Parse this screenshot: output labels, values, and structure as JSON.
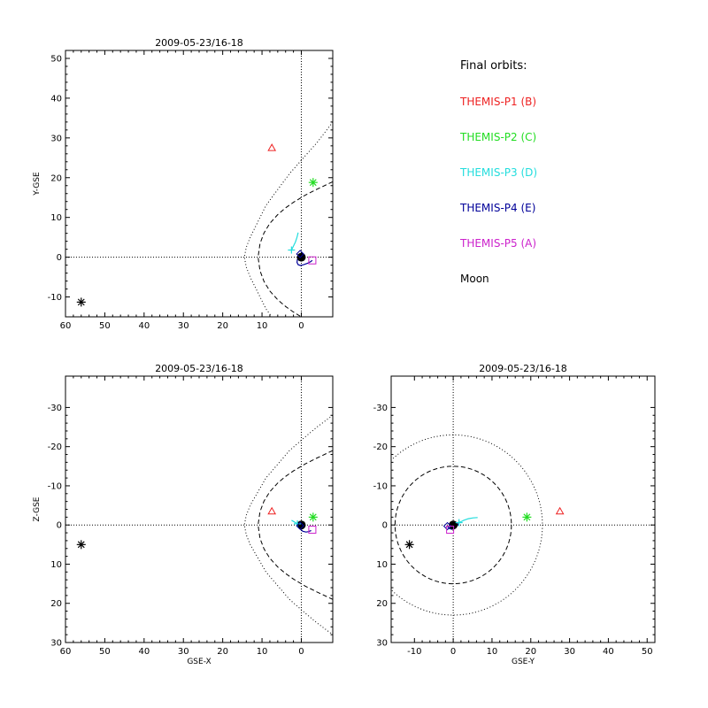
{
  "colors": {
    "p1": "#ee2222",
    "p2": "#22dd22",
    "p3": "#22dddd",
    "p4": "#000099",
    "p5": "#cc22cc",
    "moon": "#000000",
    "axes": "#000000"
  },
  "legend": {
    "title": "Final orbits:",
    "items": [
      {
        "label": "THEMIS-P1 (B)",
        "color": "#ee2222",
        "symbol": "triangle"
      },
      {
        "label": "THEMIS-P2 (C)",
        "color": "#22dd22",
        "symbol": "asterisk"
      },
      {
        "label": "THEMIS-P3 (D)",
        "color": "#22dddd",
        "symbol": "plus"
      },
      {
        "label": "THEMIS-P4 (E)",
        "color": "#000099",
        "symbol": "diamond"
      },
      {
        "label": "THEMIS-P5 (A)",
        "color": "#cc22cc",
        "symbol": "square"
      },
      {
        "label": "Moon",
        "color": "#000000",
        "symbol": "asterisk"
      }
    ]
  },
  "chart_data": [
    {
      "type": "scatter",
      "panel": "top-left",
      "title": "2009-05-23/16-18",
      "xlabel": "",
      "ylabel": "Y-GSE",
      "xlim": [
        60,
        -8
      ],
      "ylim": [
        52,
        -15
      ],
      "xticks": [
        60,
        50,
        40,
        30,
        20,
        10,
        0
      ],
      "yticks": [
        -10,
        0,
        10,
        20,
        30,
        40,
        50
      ],
      "points": [
        {
          "name": "THEMIS-P1 (B)",
          "x": 7.5,
          "y": 27.5,
          "symbol": "triangle"
        },
        {
          "name": "THEMIS-P2 (C)",
          "x": -3.0,
          "y": 18.8,
          "symbol": "asterisk"
        },
        {
          "name": "THEMIS-P3 (D)",
          "x": 2.5,
          "y": 1.8,
          "symbol": "plus"
        },
        {
          "name": "THEMIS-P4 (E)",
          "x": 0.3,
          "y": 0.8,
          "symbol": "diamond"
        },
        {
          "name": "THEMIS-P5 (A)",
          "x": -2.8,
          "y": -0.8,
          "symbol": "square"
        },
        {
          "name": "Moon",
          "x": 56.0,
          "y": -11.3,
          "symbol": "asterisk"
        }
      ],
      "orbits": [
        {
          "name": "THEMIS-P3 (D)",
          "x": [
            2.5,
            2.0,
            1.5,
            1.1,
            0.8
          ],
          "y": [
            1.8,
            2.8,
            3.8,
            5.0,
            6.2
          ]
        },
        {
          "name": "THEMIS-P4 (E)",
          "x": [
            0.3,
            0.7,
            1.0,
            1.1,
            0.8,
            0.2,
            -0.6,
            -1.6,
            -2.4,
            -2.8
          ],
          "y": [
            0.8,
            0.2,
            -0.6,
            -1.3,
            -1.9,
            -2.1,
            -1.9,
            -1.5,
            -1.1,
            -0.8
          ]
        }
      ],
      "boundaries": [
        {
          "style": "dotted",
          "x": [
            -8,
            -4,
            -1,
            3,
            6,
            9,
            11,
            13,
            14,
            14.5,
            14,
            13,
            11,
            9,
            6,
            3,
            -1,
            -4,
            -8
          ],
          "y": [
            34,
            28.8,
            25.5,
            21,
            17,
            13,
            9,
            5,
            2.5,
            0,
            -2.5,
            -5,
            -9,
            -13,
            -17,
            -21,
            -25.5,
            -28.8,
            -34
          ]
        },
        {
          "style": "dashed",
          "x": [
            -8,
            -4,
            -1,
            2,
            4,
            6,
            8,
            9.5,
            10.5,
            11,
            10.5,
            9.5,
            8,
            6,
            4,
            2,
            -1,
            -4,
            -8
          ],
          "y": [
            19,
            17.1,
            15.6,
            13.8,
            12.4,
            10.7,
            8.5,
            6.1,
            3.4,
            0,
            -3.4,
            -6.1,
            -8.5,
            -10.7,
            -12.4,
            -13.8,
            -15.6,
            -17.1,
            -19
          ]
        }
      ],
      "dotted_axes": {
        "x": 0,
        "y": 0
      }
    },
    {
      "type": "scatter",
      "panel": "bottom-left",
      "title": "2009-05-23/16-18",
      "xlabel": "GSE-X",
      "ylabel": "Z-GSE",
      "xlim": [
        60,
        -8
      ],
      "ylim": [
        -38,
        30
      ],
      "xticks": [
        60,
        50,
        40,
        30,
        20,
        10,
        0
      ],
      "yticks": [
        -30,
        -20,
        -10,
        0,
        10,
        20,
        30
      ],
      "points": [
        {
          "name": "THEMIS-P1 (B)",
          "x": 7.5,
          "y": -3.5,
          "symbol": "triangle"
        },
        {
          "name": "THEMIS-P2 (C)",
          "x": -3.0,
          "y": -2.0,
          "symbol": "asterisk"
        },
        {
          "name": "THEMIS-P3 (D)",
          "x": 1.0,
          "y": -0.3,
          "symbol": "plus"
        },
        {
          "name": "THEMIS-P4 (E)",
          "x": 0.3,
          "y": 0.2,
          "symbol": "diamond"
        },
        {
          "name": "THEMIS-P5 (A)",
          "x": -2.8,
          "y": 1.2,
          "symbol": "square"
        },
        {
          "name": "Moon",
          "x": 56.0,
          "y": 5.0,
          "symbol": "asterisk"
        }
      ],
      "orbits": [
        {
          "name": "THEMIS-P3 (D)",
          "x": [
            2.5,
            2.0,
            1.5,
            1.0,
            0.4
          ],
          "y": [
            -1.2,
            -0.9,
            -0.6,
            -0.3,
            0.0
          ]
        },
        {
          "name": "THEMIS-P4 (E)",
          "x": [
            0.8,
            0.6,
            0.2,
            -0.4,
            -1.2,
            -1.9,
            -2.5
          ],
          "y": [
            -0.3,
            0.4,
            1.1,
            1.6,
            1.8,
            1.7,
            1.4
          ]
        }
      ],
      "boundaries": [
        {
          "style": "dotted",
          "x": [
            -8,
            -4,
            -1,
            3,
            6,
            9,
            11,
            13,
            14,
            14.5,
            14,
            13,
            11,
            9,
            6,
            3,
            -1,
            -4,
            -8
          ],
          "y": [
            -28,
            -25,
            -22.5,
            -19,
            -15.5,
            -12,
            -8.5,
            -5,
            -2.5,
            0,
            2.5,
            5,
            8.5,
            12,
            15.5,
            19,
            22.5,
            25,
            28
          ]
        },
        {
          "style": "dashed",
          "x": [
            -8,
            -4,
            -1,
            2,
            4,
            6,
            8,
            9.5,
            10.5,
            11,
            10.5,
            9.5,
            8,
            6,
            4,
            2,
            -1,
            -4,
            -8
          ],
          "y": [
            -19,
            -17.1,
            -15.6,
            -13.8,
            -12.4,
            -10.7,
            -8.5,
            -6.1,
            -3.4,
            0,
            3.4,
            6.1,
            8.5,
            10.7,
            12.4,
            13.8,
            15.6,
            17.1,
            19
          ]
        }
      ],
      "dotted_axes": {
        "x": 0,
        "y": 0
      }
    },
    {
      "type": "scatter",
      "panel": "bottom-right",
      "title": "2009-05-23/16-18",
      "xlabel": "GSE-Y",
      "ylabel": "",
      "xlim": [
        -16,
        52
      ],
      "ylim": [
        -38,
        30
      ],
      "xticks": [
        -10,
        0,
        10,
        20,
        30,
        40,
        50
      ],
      "yticks": [
        -30,
        -20,
        -10,
        0,
        10,
        20,
        30
      ],
      "points": [
        {
          "name": "THEMIS-P1 (B)",
          "x": 27.5,
          "y": -3.5,
          "symbol": "triangle"
        },
        {
          "name": "THEMIS-P2 (C)",
          "x": 19.0,
          "y": -2.0,
          "symbol": "asterisk"
        },
        {
          "name": "THEMIS-P3 (D)",
          "x": 1.5,
          "y": -0.6,
          "symbol": "plus"
        },
        {
          "name": "THEMIS-P4 (E)",
          "x": -1.5,
          "y": 0.3,
          "symbol": "diamond"
        },
        {
          "name": "THEMIS-P5 (A)",
          "x": -0.8,
          "y": 1.2,
          "symbol": "square"
        },
        {
          "name": "Moon",
          "x": -11.3,
          "y": 5.0,
          "symbol": "asterisk"
        }
      ],
      "orbits": [
        {
          "name": "THEMIS-P3 (D)",
          "x": [
            1.5,
            2.7,
            3.9,
            5.1,
            6.3
          ],
          "y": [
            -0.6,
            -1.2,
            -1.6,
            -1.8,
            -1.9
          ]
        },
        {
          "name": "THEMIS-P4 (E)",
          "x": [
            -1.5,
            -1.0,
            -0.3,
            0.4,
            1.0,
            1.3
          ],
          "y": [
            0.3,
            0.9,
            1.1,
            0.8,
            0.2,
            -0.4
          ]
        }
      ],
      "circles": [
        {
          "style": "dotted",
          "cx": 0,
          "cy": 0,
          "r": 23
        },
        {
          "style": "dashed",
          "cx": 0,
          "cy": 0,
          "r": 15
        }
      ],
      "dotted_axes": {
        "x": 0,
        "y": 0
      }
    }
  ]
}
